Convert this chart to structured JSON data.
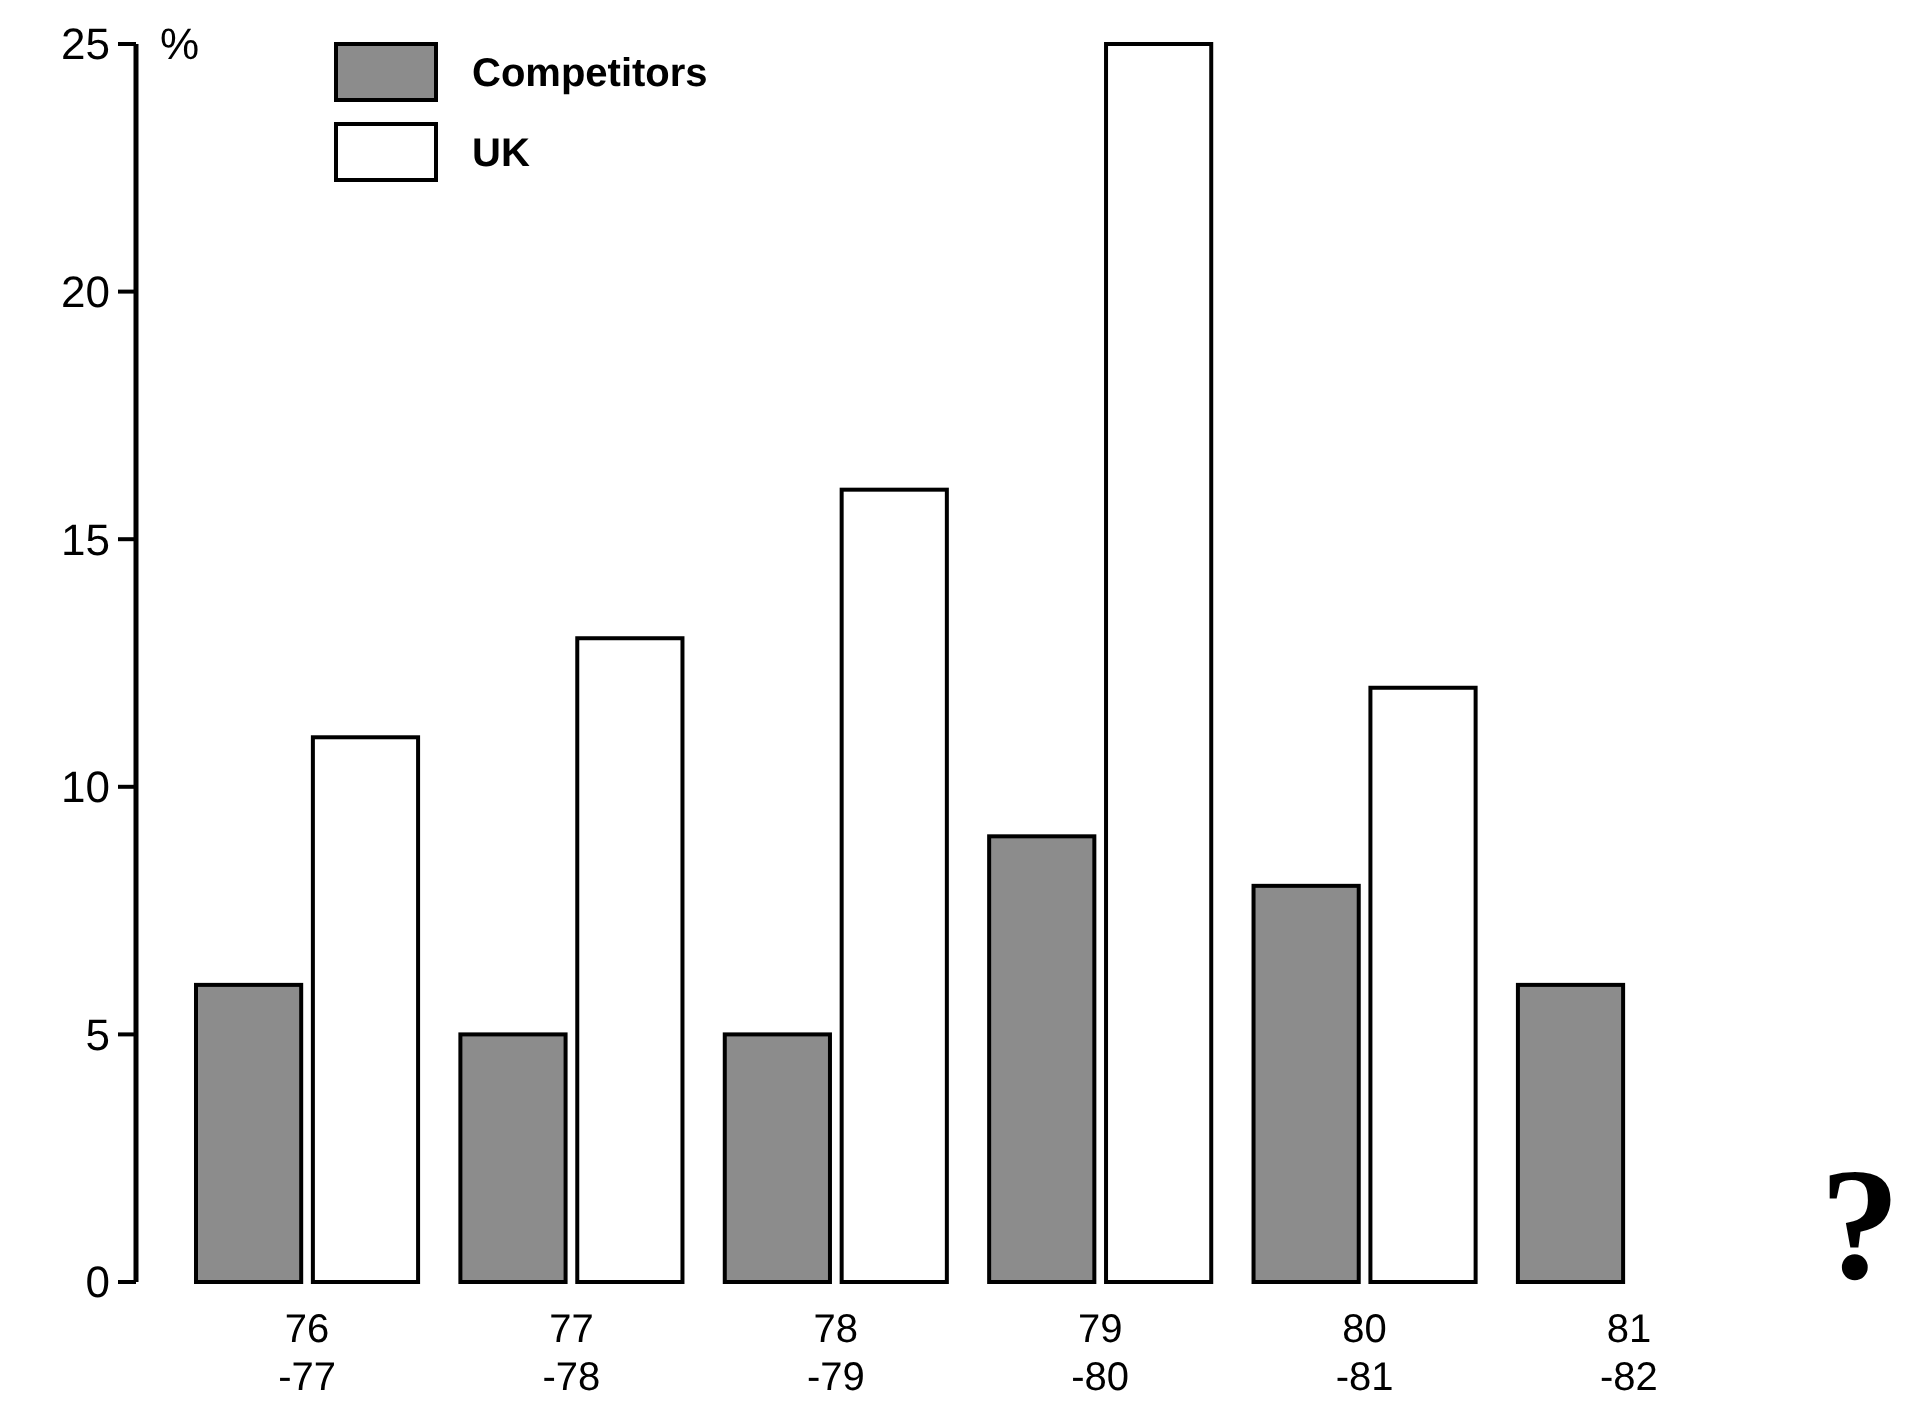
{
  "chart_data": {
    "type": "bar",
    "ylabel": "%",
    "categories": [
      "76\n-77",
      "77\n-78",
      "78\n-79",
      "79\n-80",
      "80\n-81",
      "81\n-82"
    ],
    "series": [
      {
        "name": "Competitors",
        "color": "#8c8c8c",
        "values": [
          6,
          5,
          5,
          9,
          8,
          6
        ]
      },
      {
        "name": "UK",
        "color": "#ffffff",
        "values": [
          11,
          13,
          16,
          25,
          12,
          null
        ]
      }
    ],
    "ylim": [
      0,
      25
    ],
    "yticks": [
      0,
      5,
      10,
      15,
      20,
      25
    ],
    "grid": false,
    "legend": "top left",
    "annotations": [
      "?"
    ]
  }
}
